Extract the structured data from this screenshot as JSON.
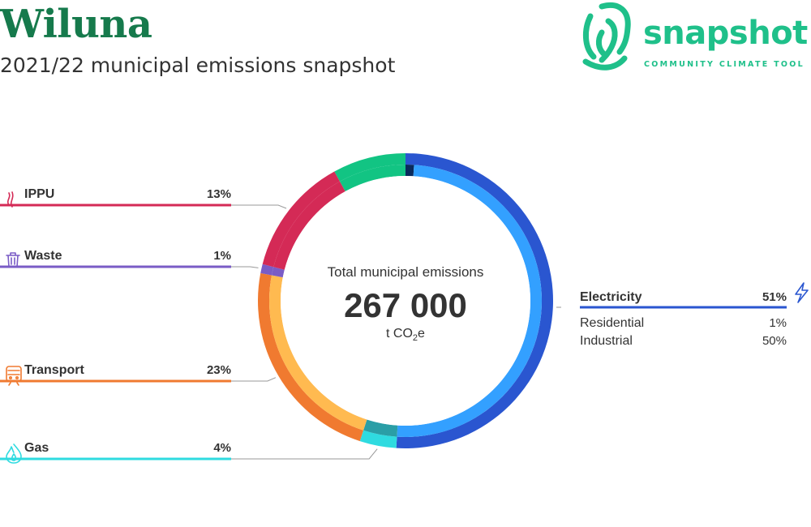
{
  "header": {
    "title": "Wiluna",
    "subtitle": "2021/22 municipal emissions snapshot"
  },
  "brand": {
    "name": "snapshot",
    "tagline": "COMMUNITY CLIMATE TOOL",
    "color": "#1fc08a"
  },
  "colors": {
    "title": "#167a4c",
    "text": "#333333",
    "leader": "#999999"
  },
  "chart_data": {
    "type": "pie",
    "style": "donut",
    "center": {
      "label": "Total municipal emissions",
      "value": "267 000",
      "unit_prefix": "t CO",
      "unit_sub": "2",
      "unit_suffix": "e"
    },
    "segments": [
      {
        "name": "Electricity",
        "label": "51%",
        "value": 51,
        "color": "#2a56d0",
        "icon": "lightning-icon",
        "subsegments": [
          {
            "name": "Residential",
            "label": "1%",
            "value": 1,
            "color": "#0a2a5c"
          },
          {
            "name": "Industrial",
            "label": "50%",
            "value": 50,
            "color": "#33a0ff"
          }
        ]
      },
      {
        "name": "Gas",
        "label": "4%",
        "value": 4,
        "color": "#2fdbe0",
        "icon": "flame-icon",
        "subsegments": [
          {
            "name": "",
            "label": "",
            "value": 4,
            "color": "#2a9ea6"
          }
        ]
      },
      {
        "name": "Transport",
        "label": "23%",
        "value": 23,
        "color": "#f07a30",
        "icon": "train-icon",
        "subsegments": [
          {
            "name": "",
            "label": "",
            "value": 23,
            "color": "#ffba50"
          }
        ]
      },
      {
        "name": "Waste",
        "label": "1%",
        "value": 1,
        "color": "#7a5cc6",
        "icon": "bin-icon",
        "subsegments": [
          {
            "name": "",
            "label": "",
            "value": 1,
            "color": "#7a5cc6"
          }
        ]
      },
      {
        "name": "IPPU",
        "label": "13%",
        "value": 13,
        "color": "#d42a56",
        "icon": "smoke-icon",
        "subsegments": [
          {
            "name": "",
            "label": "",
            "value": 13,
            "color": "#d42a56"
          }
        ]
      },
      {
        "name": "",
        "label": "",
        "value": 8,
        "color": "#12c483",
        "subsegments": [
          {
            "name": "",
            "label": "",
            "value": 8,
            "color": "#12c483"
          }
        ]
      }
    ],
    "callouts": {
      "left": [
        "IPPU",
        "Waste",
        "Transport",
        "Gas"
      ],
      "right": [
        "Electricity"
      ]
    }
  }
}
